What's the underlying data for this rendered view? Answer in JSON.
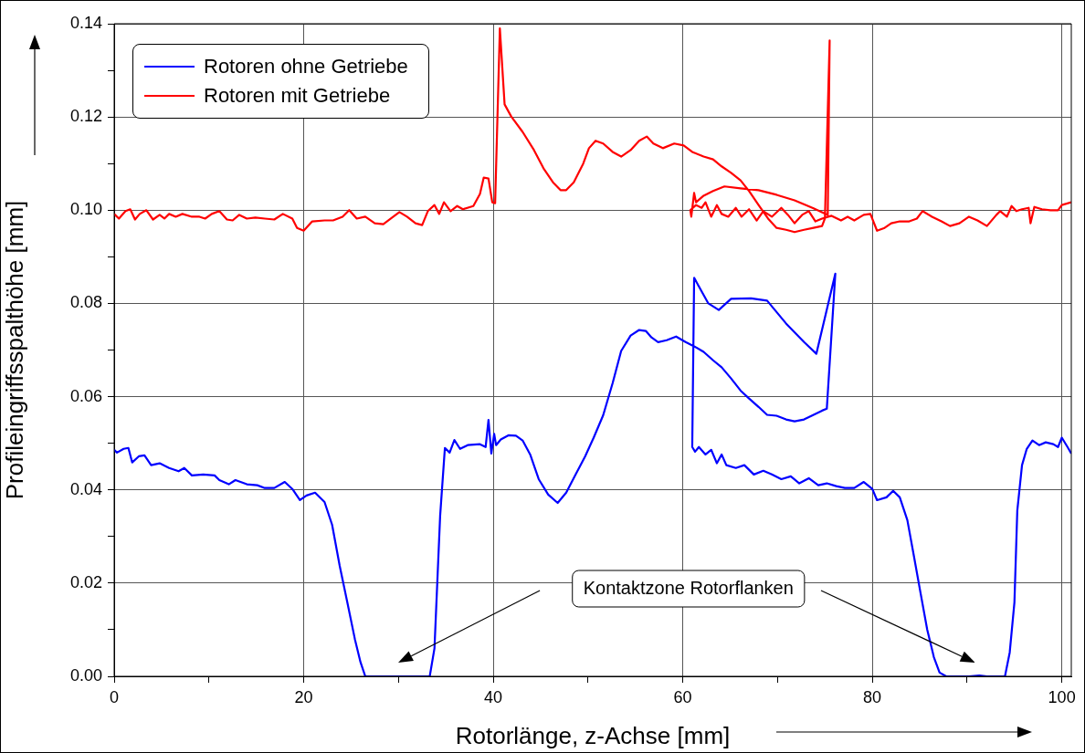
{
  "chart_data": {
    "type": "line",
    "xlabel": "Rotorlänge, z-Achse [mm]",
    "ylabel": "Profileingriffsspalthöhe [mm]",
    "xlim": [
      0,
      101
    ],
    "xticks": [
      0,
      {
        "value": 10,
        "label": null
      },
      20,
      {
        "value": 30,
        "label": null
      },
      40,
      {
        "value": 50,
        "label": null
      },
      60,
      {
        "value": 70,
        "label": null
      },
      80,
      {
        "value": 90,
        "label": null
      },
      100
    ],
    "ylim": [
      0,
      0.14
    ],
    "yticks": [
      {
        "value": 0,
        "label": "0.00"
      },
      {
        "value": 0.01,
        "label": null
      },
      {
        "value": 0.02,
        "label": "0.02"
      },
      {
        "value": 0.03,
        "label": null
      },
      {
        "value": 0.04,
        "label": "0.04"
      },
      {
        "value": 0.05,
        "label": null
      },
      {
        "value": 0.06,
        "label": "0.06"
      },
      {
        "value": 0.07,
        "label": null
      },
      {
        "value": 0.08,
        "label": "0.08"
      },
      {
        "value": 0.09,
        "label": null
      },
      {
        "value": 0.1,
        "label": "0.10"
      },
      {
        "value": 0.11,
        "label": null
      },
      {
        "value": 0.12,
        "label": "0.12"
      },
      {
        "value": 0.13,
        "label": null
      },
      {
        "value": 0.14,
        "label": "0.14"
      }
    ],
    "grid": true,
    "legend": "top left",
    "line_style": "solid",
    "annotations": [
      "Kontaktzone Rotorflanken"
    ],
    "series": [
      {
        "name": "Rotoren ohne Getriebe",
        "color": "#0000ff",
        "x": [
          0,
          0.3,
          1,
          1.5,
          1.9,
          2.6,
          3.2,
          3.9,
          4.8,
          5.8,
          6.8,
          7.4,
          8.2,
          9.4,
          10.6,
          11.1,
          12.1,
          12.8,
          14,
          15.1,
          15.9,
          16.9,
          18,
          18.8,
          19.6,
          20.3,
          21.2,
          22.2,
          23,
          23.8,
          24.6,
          25.4,
          26,
          26.5,
          33.3,
          33.8,
          34.4,
          34.9,
          35.4,
          35.9,
          36.5,
          37.3,
          38.6,
          39.2,
          39.5,
          39.8,
          40.1,
          40.3,
          40.8,
          41.6,
          42.4,
          43.1,
          43.9,
          44.8,
          45.8,
          46.8,
          47.7,
          48.7,
          49.7,
          50.6,
          51.6,
          52.6,
          53.5,
          54.5,
          55.4,
          56.1,
          56.7,
          57.4,
          58.3,
          59.3,
          60.3,
          61.2,
          62.2,
          63.2,
          64.1,
          65.1,
          66.1,
          67,
          68,
          68.9,
          69.9,
          70.9,
          71.8,
          72.8,
          73.8,
          74.7,
          75.2,
          76.1,
          74.1,
          72.8,
          70.9,
          68.9,
          67.2,
          65.1,
          63.8,
          62.7,
          61.2,
          61,
          61.3,
          61.7,
          62.4,
          63,
          63.6,
          64.1,
          64.6,
          65.6,
          66.5,
          67.5,
          68.5,
          69.4,
          70.4,
          71.4,
          72.3,
          73.3,
          74.3,
          75.2,
          76.2,
          77.1,
          78.1,
          79.1,
          80,
          80.5,
          81.5,
          82.2,
          82.9,
          83.7,
          84.4,
          85.1,
          85.8,
          86.5,
          87.1,
          87.8,
          90.2,
          91.3,
          92.1,
          94,
          94.5,
          95,
          95.3,
          95.8,
          96.3,
          96.9,
          97.6,
          98.3,
          99.1,
          99.6,
          100,
          100.6,
          101
        ],
        "values": [
          0.0486,
          0.048,
          0.0488,
          0.049,
          0.0459,
          0.0472,
          0.0474,
          0.0453,
          0.0457,
          0.0447,
          0.044,
          0.0447,
          0.0431,
          0.0433,
          0.0431,
          0.0421,
          0.0412,
          0.0421,
          0.0412,
          0.041,
          0.0404,
          0.0404,
          0.0417,
          0.0402,
          0.0378,
          0.0388,
          0.0394,
          0.0374,
          0.0325,
          0.0237,
          0.0159,
          0.008,
          0.003,
          0,
          0,
          0.006,
          0.0345,
          0.049,
          0.048,
          0.0507,
          0.0488,
          0.0496,
          0.0498,
          0.0492,
          0.055,
          0.0478,
          0.052,
          0.0496,
          0.0508,
          0.0517,
          0.0516,
          0.0506,
          0.0476,
          0.0423,
          0.039,
          0.0372,
          0.0394,
          0.0433,
          0.0472,
          0.0512,
          0.056,
          0.0629,
          0.0698,
          0.0731,
          0.0743,
          0.0741,
          0.0727,
          0.0717,
          0.0721,
          0.0729,
          0.0717,
          0.0708,
          0.0696,
          0.0678,
          0.0663,
          0.0639,
          0.0613,
          0.0596,
          0.0578,
          0.0561,
          0.0559,
          0.0551,
          0.0547,
          0.0551,
          0.0561,
          0.057,
          0.0574,
          0.0864,
          0.0692,
          0.0717,
          0.0757,
          0.0806,
          0.0811,
          0.081,
          0.0786,
          0.08,
          0.0855,
          0.0492,
          0.0482,
          0.0492,
          0.0476,
          0.0486,
          0.0457,
          0.0476,
          0.0453,
          0.0447,
          0.0453,
          0.0433,
          0.0441,
          0.0433,
          0.0423,
          0.0429,
          0.0414,
          0.0425,
          0.041,
          0.0414,
          0.0408,
          0.0404,
          0.0404,
          0.0417,
          0.0402,
          0.0378,
          0.0384,
          0.0398,
          0.0384,
          0.0335,
          0.0257,
          0.0178,
          0.01,
          0.0041,
          0.0008,
          0,
          0,
          0.0002,
          0,
          0,
          0.0051,
          0.0159,
          0.0355,
          0.0453,
          0.0488,
          0.0506,
          0.0496,
          0.0502,
          0.0498,
          0.0492,
          0.0512,
          0.0492,
          0.0478
        ]
      },
      {
        "name": "Rotoren mit Getriebe",
        "color": "#ff0000",
        "x": [
          0,
          0.5,
          1.2,
          1.7,
          2.2,
          2.7,
          3.4,
          4.1,
          4.8,
          5.3,
          5.8,
          6.5,
          7.2,
          8.2,
          9,
          9.6,
          10.3,
          11.1,
          11.9,
          12.5,
          13.2,
          14,
          14.9,
          15.9,
          16.9,
          17.8,
          18.8,
          19.3,
          20,
          20.9,
          22.2,
          23.1,
          24.1,
          24.8,
          25.6,
          26.5,
          27.5,
          28.4,
          29.2,
          30.1,
          30.9,
          31.8,
          32.5,
          33.1,
          33.8,
          34.3,
          34.8,
          35.5,
          36.2,
          36.8,
          37.9,
          38.6,
          39,
          39.5,
          39.9,
          40.2,
          40.7,
          41.2,
          41.9,
          43.1,
          44.3,
          45.3,
          46.3,
          47.1,
          47.7,
          48.5,
          49.5,
          50.1,
          50.8,
          51.6,
          52.6,
          53.5,
          54.5,
          55.4,
          56.2,
          56.9,
          57.9,
          59.1,
          60.1,
          61,
          62.2,
          63.2,
          64.1,
          65.1,
          66.1,
          67,
          68,
          69,
          69.9,
          70.9,
          71.8,
          72.8,
          73.8,
          74.7,
          75,
          75.5,
          75.3,
          73.8,
          71.8,
          69.9,
          68,
          66.1,
          64.4,
          63.2,
          62.2,
          61.4,
          61.2,
          60.9,
          60.8,
          61.4,
          62,
          62.4,
          63,
          63.6,
          64.1,
          64.8,
          65.6,
          66.2,
          67,
          67.8,
          68.5,
          69.4,
          70.4,
          71.1,
          71.8,
          72.6,
          73.3,
          74,
          74.7,
          75.7,
          76.7,
          77.4,
          78.1,
          79.1,
          79.8,
          80.5,
          81.3,
          82,
          82.9,
          83.9,
          84.7,
          85.3,
          86.3,
          87.3,
          88.2,
          89.2,
          90.2,
          91.1,
          92.1,
          93.1,
          93.5,
          94.2,
          94.7,
          95.2,
          95.8,
          96.5,
          96.7,
          97.1,
          97.9,
          98.8,
          99.6,
          100,
          101
        ],
        "values": [
          0.0992,
          0.0982,
          0.0998,
          0.1002,
          0.098,
          0.0992,
          0.1,
          0.098,
          0.099,
          0.0982,
          0.0992,
          0.0986,
          0.0992,
          0.0986,
          0.0986,
          0.0982,
          0.0992,
          0.0998,
          0.098,
          0.0978,
          0.099,
          0.0982,
          0.0984,
          0.0982,
          0.098,
          0.0992,
          0.0982,
          0.0962,
          0.0956,
          0.0976,
          0.0978,
          0.0978,
          0.0986,
          0.1,
          0.0982,
          0.0986,
          0.0972,
          0.097,
          0.0982,
          0.0996,
          0.0986,
          0.0972,
          0.0968,
          0.0998,
          0.1011,
          0.0992,
          0.1017,
          0.0998,
          0.1009,
          0.1002,
          0.1009,
          0.1035,
          0.107,
          0.1068,
          0.1017,
          0.1015,
          0.139,
          0.1227,
          0.1201,
          0.1168,
          0.1129,
          0.109,
          0.106,
          0.1043,
          0.1043,
          0.106,
          0.11,
          0.1133,
          0.1149,
          0.1143,
          0.1125,
          0.1115,
          0.1129,
          0.1149,
          0.1158,
          0.1143,
          0.1133,
          0.1143,
          0.1139,
          0.1125,
          0.1115,
          0.1109,
          0.1094,
          0.108,
          0.1064,
          0.1041,
          0.1011,
          0.0982,
          0.0962,
          0.0958,
          0.0953,
          0.0958,
          0.0962,
          0.0966,
          0.0982,
          0.1364,
          0.099,
          0.1004,
          0.1021,
          0.1033,
          0.1043,
          0.1047,
          0.1051,
          0.1041,
          0.1031,
          0.1017,
          0.1037,
          0.0986,
          0.1,
          0.1011,
          0.1005,
          0.1017,
          0.0986,
          0.1011,
          0.0992,
          0.0986,
          0.1005,
          0.0986,
          0.1002,
          0.0978,
          0.0998,
          0.0986,
          0.1005,
          0.099,
          0.0972,
          0.099,
          0.0998,
          0.0976,
          0.0982,
          0.0988,
          0.0978,
          0.0986,
          0.0978,
          0.099,
          0.0992,
          0.0956,
          0.0962,
          0.0972,
          0.0976,
          0.0976,
          0.0982,
          0.0998,
          0.0986,
          0.0976,
          0.0966,
          0.0972,
          0.0986,
          0.0978,
          0.0966,
          0.099,
          0.0998,
          0.0986,
          0.1009,
          0.0998,
          0.1002,
          0.1005,
          0.0972,
          0.1007,
          0.1002,
          0.1,
          0.1,
          0.1011,
          0.1017
        ]
      }
    ]
  }
}
